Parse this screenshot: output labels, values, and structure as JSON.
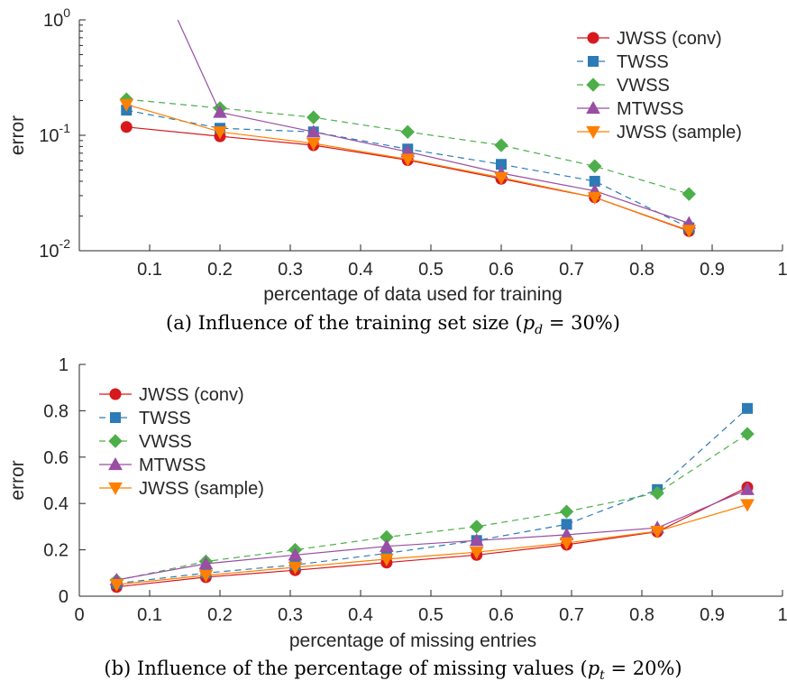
{
  "colors": {
    "JWSS (conv)": "#d7191c",
    "TWSS": "#2c7bb6",
    "VWSS": "#4daf4a",
    "MTWSS": "#984ea3",
    "JWSS (sample)": "#ff7f00",
    "axis": "#262626"
  },
  "chart_data": [
    {
      "type": "line",
      "caption": "(a) Influence of the training set size (p_d = 30%)",
      "caption_parts": {
        "before": "(a) Influence of the training set size (",
        "var": "p",
        "sub": "d",
        "after": " = 30%)"
      },
      "xlabel": "percentage of data used for training",
      "ylabel": "error",
      "xlim": [
        0,
        1
      ],
      "ylim": [
        0.01,
        1
      ],
      "yscale": "log",
      "xticks": [
        "0.1",
        "0.2",
        "0.3",
        "0.4",
        "0.5",
        "0.6",
        "0.7",
        "0.8",
        "0.9",
        "1"
      ],
      "yticks": [
        {
          "base": "10",
          "exp": "-2",
          "value": 0.01
        },
        {
          "base": "10",
          "exp": "-1",
          "value": 0.1
        },
        {
          "base": "10",
          "exp": "0",
          "value": 1
        }
      ],
      "legend_position": "top-right",
      "x": [
        0.067,
        0.2,
        0.333,
        0.467,
        0.6,
        0.733,
        0.867
      ],
      "series": [
        {
          "name": "JWSS (conv)",
          "marker": "circle",
          "dash": "solid",
          "values": [
            0.118,
            0.098,
            0.082,
            0.061,
            0.042,
            0.029,
            0.0148
          ]
        },
        {
          "name": "TWSS",
          "marker": "square",
          "dash": "dashed",
          "values": [
            0.165,
            0.115,
            0.107,
            0.076,
            0.056,
            0.04,
            0.0158
          ]
        },
        {
          "name": "VWSS",
          "marker": "diamond",
          "dash": "dashed",
          "values": [
            0.205,
            0.172,
            0.143,
            0.107,
            0.082,
            0.054,
            0.031
          ]
        },
        {
          "name": "MTWSS",
          "marker": "triangle-up",
          "dash": "solid",
          "values": [
            1.0,
            0.158,
            0.107,
            0.072,
            0.047,
            0.033,
            0.0173
          ],
          "clip_start_x": 0.14
        },
        {
          "name": "JWSS (sample)",
          "marker": "triangle-down",
          "dash": "solid",
          "values": [
            0.185,
            0.107,
            0.085,
            0.062,
            0.043,
            0.029,
            0.015
          ]
        }
      ]
    },
    {
      "type": "line",
      "caption": "(b) Influence of the percentage of missing values (p_t = 20%)",
      "caption_parts": {
        "before": "(b) Influence of the percentage of missing values (",
        "var": "p",
        "sub": "t",
        "after": " = 20%)"
      },
      "xlabel": "percentage of missing entries",
      "ylabel": "error",
      "xlim": [
        0,
        1
      ],
      "ylim": [
        0,
        1
      ],
      "yscale": "linear",
      "xticks": [
        "0",
        "0.1",
        "0.2",
        "0.3",
        "0.4",
        "0.5",
        "0.6",
        "0.7",
        "0.8",
        "0.9",
        "1"
      ],
      "yticks": [
        "0",
        "0.2",
        "0.4",
        "0.6",
        "0.8",
        "1"
      ],
      "legend_position": "top-left",
      "x": [
        0.053,
        0.18,
        0.307,
        0.437,
        0.565,
        0.693,
        0.822,
        0.95
      ],
      "series": [
        {
          "name": "JWSS (conv)",
          "marker": "circle",
          "dash": "solid",
          "values": [
            0.04,
            0.082,
            0.112,
            0.145,
            0.178,
            0.222,
            0.278,
            0.47
          ]
        },
        {
          "name": "TWSS",
          "marker": "square",
          "dash": "dashed",
          "values": [
            0.055,
            0.1,
            0.135,
            0.185,
            0.24,
            0.31,
            0.46,
            0.81
          ]
        },
        {
          "name": "VWSS",
          "marker": "diamond",
          "dash": "dashed",
          "values": [
            0.068,
            0.15,
            0.2,
            0.255,
            0.3,
            0.365,
            0.445,
            0.7
          ]
        },
        {
          "name": "MTWSS",
          "marker": "triangle-up",
          "dash": "solid",
          "values": [
            0.07,
            0.14,
            0.178,
            0.215,
            0.24,
            0.265,
            0.295,
            0.46
          ]
        },
        {
          "name": "JWSS (sample)",
          "marker": "triangle-down",
          "dash": "solid",
          "values": [
            0.05,
            0.09,
            0.125,
            0.16,
            0.19,
            0.23,
            0.28,
            0.395
          ]
        }
      ]
    }
  ]
}
